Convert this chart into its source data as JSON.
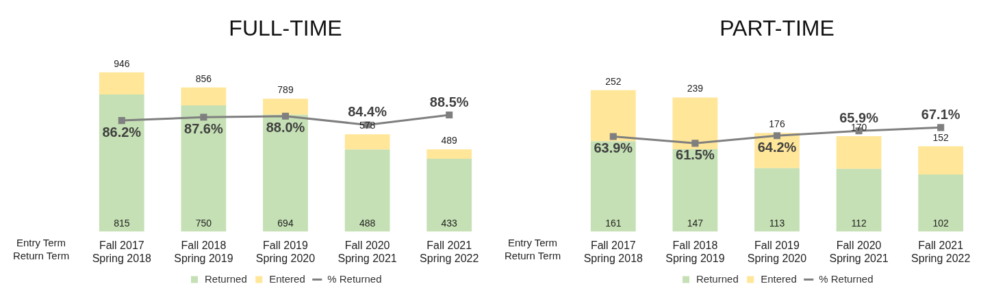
{
  "chart_data": [
    {
      "type": "bar",
      "title": "FULL-TIME",
      "xlabel": "Entry Term\nReturn Term",
      "categories": [
        "Fall 2017\nSpring 2018",
        "Fall 2018\nSpring 2019",
        "Fall 2019\nSpring 2020",
        "Fall 2020\nSpring 2021",
        "Fall 2021\nSpring 2022"
      ],
      "stacked": true,
      "legend": "bottom",
      "grid": false,
      "tick_labels": "x",
      "totals": [
        "946",
        "856",
        "789",
        "578",
        "489"
      ],
      "series": [
        {
          "name": "Returned",
          "color": "#c5e0b4",
          "values": [
            815,
            750,
            694,
            488,
            433
          ],
          "value_labels": [
            "815",
            "750",
            "694",
            "488",
            "433"
          ]
        },
        {
          "name": "Entered",
          "color": "#ffe699",
          "values": [
            131,
            106,
            95,
            90,
            56
          ]
        },
        {
          "name": "% Returned",
          "type": "line",
          "axis": "y2",
          "color": "#7f7f7f",
          "marker": "square",
          "values": [
            86.2,
            87.6,
            88.0,
            84.4,
            88.5
          ],
          "value_labels": [
            "86.2%",
            "87.6%",
            "88.0%",
            "84.4%",
            "88.5%"
          ]
        }
      ]
    },
    {
      "type": "bar",
      "title": "PART-TIME",
      "xlabel": "Entry Term\nReturn Term",
      "categories": [
        "Fall 2017\nSpring 2018",
        "Fall 2018\nSpring 2019",
        "Fall 2019\nSpring 2020",
        "Fall 2020\nSpring 2021",
        "Fall 2021\nSpring 2022"
      ],
      "stacked": true,
      "legend": "bottom",
      "grid": false,
      "tick_labels": "x",
      "totals": [
        "252",
        "239",
        "176",
        "170",
        "152"
      ],
      "series": [
        {
          "name": "Returned",
          "color": "#c5e0b4",
          "values": [
            161,
            147,
            113,
            112,
            102
          ],
          "value_labels": [
            "161",
            "147",
            "113",
            "112",
            "102"
          ]
        },
        {
          "name": "Entered",
          "color": "#ffe699",
          "values": [
            91,
            92,
            63,
            58,
            50
          ]
        },
        {
          "name": "% Returned",
          "type": "line",
          "axis": "y2",
          "color": "#7f7f7f",
          "marker": "square",
          "values": [
            63.9,
            61.5,
            64.2,
            65.9,
            67.1
          ],
          "value_labels": [
            "63.9%",
            "61.5%",
            "64.2%",
            "65.9%",
            "67.1%"
          ]
        }
      ]
    }
  ]
}
